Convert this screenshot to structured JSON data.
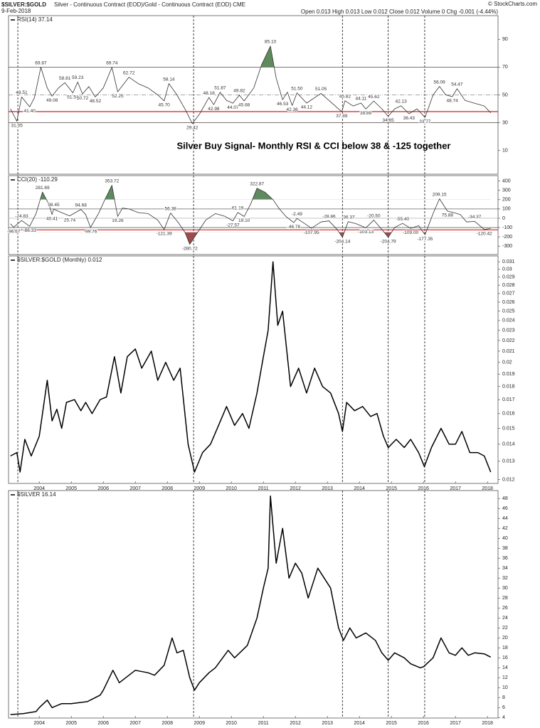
{
  "header": {
    "symbol": "$SILVER:$GOLD",
    "description": "Silver - Continuous Contract (EOD)/Gold - Continuous Contract (EOD) CME",
    "date": "9-Feb-2018",
    "quote": "Open 0.013 High 0.013 Low 0.012 Close 0.012 Volume 0 Chg -0.001 (-4.44%)",
    "copyright": "© StockCharts.com"
  },
  "chart_data": [
    {
      "type": "line",
      "title": "RSI(14) 37.14",
      "color": "#333333",
      "annotation": "Silver Buy Signal- Monthly RSI & CCI below 38 & -125 together",
      "xlim": [
        2003.04,
        2018.33
      ],
      "ylim": [
        -7,
        107
      ],
      "yticks": [
        90,
        70,
        50,
        30,
        10
      ],
      "fill_above": 70,
      "fill_below": 30,
      "fill_above_color": "#5e8a5e",
      "fill_below_color": "#9e4b4b",
      "hlines": [
        {
          "value": 70,
          "color": "#444444"
        },
        {
          "value": 50,
          "color": "#888888",
          "dash": true
        },
        {
          "value": 38,
          "color": "#cc2222"
        },
        {
          "value": 30,
          "color": "#444444"
        }
      ],
      "vlines": [
        2003.33,
        2008.82,
        2013.47,
        2014.9,
        2016.04
      ],
      "x": [
        2003.1,
        2003.3,
        2003.45,
        2003.7,
        2003.85,
        2004.05,
        2004.25,
        2004.4,
        2004.6,
        2004.8,
        2005.05,
        2005.2,
        2005.35,
        2005.55,
        2005.75,
        2006.0,
        2006.27,
        2006.45,
        2006.8,
        2007.1,
        2007.4,
        2007.7,
        2007.9,
        2008.05,
        2008.3,
        2008.55,
        2008.78,
        2009.0,
        2009.3,
        2009.45,
        2009.65,
        2009.85,
        2010.05,
        2010.25,
        2010.4,
        2010.7,
        2010.95,
        2011.22,
        2011.4,
        2011.6,
        2011.75,
        2011.9,
        2012.05,
        2012.35,
        2012.8,
        2013.1,
        2013.45,
        2013.55,
        2013.8,
        2014.05,
        2014.2,
        2014.45,
        2014.7,
        2014.9,
        2015.1,
        2015.3,
        2015.55,
        2015.8,
        2016.05,
        2016.3,
        2016.5,
        2016.7,
        2016.9,
        2017.05,
        2017.3,
        2017.6,
        2017.9,
        2018.1
      ],
      "values": [
        40,
        31.05,
        48.51,
        41.4,
        48,
        69.87,
        55,
        49.08,
        55,
        58.81,
        51.5,
        59.23,
        50.72,
        56,
        48.52,
        55,
        69.74,
        52.25,
        62.72,
        58,
        55,
        50,
        45.7,
        58.14,
        50,
        40,
        29.42,
        36,
        48.18,
        42.98,
        51.87,
        46,
        44.07,
        49.82,
        45.68,
        55,
        72,
        85.1,
        62,
        46.53,
        52,
        42.36,
        51.5,
        44.12,
        51.05,
        45,
        37.89,
        45.82,
        42,
        44.11,
        39.89,
        45.62,
        40,
        34.65,
        40,
        42.13,
        36.43,
        40,
        33.77,
        50,
        56.09,
        50,
        48.74,
        54.47,
        46,
        44,
        42,
        37.14
      ],
      "annotations": [
        {
          "x": 2003.3,
          "value": 31.05
        },
        {
          "x": 2003.45,
          "value": 48.51
        },
        {
          "x": 2003.7,
          "value": 41.4,
          "label": "41.40"
        },
        {
          "x": 2004.05,
          "value": 69.87
        },
        {
          "x": 2004.4,
          "value": 49.08
        },
        {
          "x": 2004.8,
          "value": 58.81
        },
        {
          "x": 2005.05,
          "value": 51.5,
          "label": "51.50"
        },
        {
          "x": 2005.2,
          "value": 59.23
        },
        {
          "x": 2005.35,
          "value": 50.72
        },
        {
          "x": 2005.75,
          "value": 48.52
        },
        {
          "x": 2006.27,
          "value": 69.74
        },
        {
          "x": 2006.45,
          "value": 52.25
        },
        {
          "x": 2006.8,
          "value": 62.72
        },
        {
          "x": 2007.9,
          "value": 45.7,
          "label": "45.70"
        },
        {
          "x": 2008.05,
          "value": 58.14
        },
        {
          "x": 2008.78,
          "value": 29.42
        },
        {
          "x": 2009.3,
          "value": 48.18
        },
        {
          "x": 2009.45,
          "value": 42.98
        },
        {
          "x": 2009.65,
          "value": 51.87
        },
        {
          "x": 2010.05,
          "value": 44.07
        },
        {
          "x": 2010.25,
          "value": 49.82
        },
        {
          "x": 2010.4,
          "value": 45.68
        },
        {
          "x": 2011.22,
          "value": 85.1,
          "label": "85.10"
        },
        {
          "x": 2011.6,
          "value": 46.53
        },
        {
          "x": 2011.9,
          "value": 42.36
        },
        {
          "x": 2012.05,
          "value": 51.5,
          "label": "51.50"
        },
        {
          "x": 2012.35,
          "value": 44.12
        },
        {
          "x": 2012.8,
          "value": 51.05
        },
        {
          "x": 2013.45,
          "value": 37.89
        },
        {
          "x": 2013.55,
          "value": 45.82
        },
        {
          "x": 2014.05,
          "value": 44.11
        },
        {
          "x": 2014.2,
          "value": 39.89
        },
        {
          "x": 2014.45,
          "value": 45.62
        },
        {
          "x": 2014.9,
          "value": 34.65
        },
        {
          "x": 2015.3,
          "value": 42.13
        },
        {
          "x": 2015.55,
          "value": 36.43
        },
        {
          "x": 2016.05,
          "value": 33.77
        },
        {
          "x": 2016.5,
          "value": 56.09
        },
        {
          "x": 2016.9,
          "value": 48.74
        },
        {
          "x": 2017.05,
          "value": 54.47
        }
      ]
    },
    {
      "type": "line",
      "title": "CCI(20) -110.29",
      "color": "#333333",
      "xlim": [
        2003.04,
        2018.33
      ],
      "ylim": [
        -390,
        458
      ],
      "yticks": [
        400,
        300,
        200,
        100,
        0,
        -100,
        -200,
        -300
      ],
      "fill_above": 200,
      "fill_below": -150,
      "fill_above_color": "#5e8a5e",
      "fill_below_color": "#9e4b4b",
      "hlines": [
        {
          "value": 100,
          "color": "#666666"
        },
        {
          "value": 0,
          "color": "#bbbbbb"
        },
        {
          "value": -100,
          "color": "#666666"
        },
        {
          "value": -125,
          "color": "#cc2222"
        }
      ],
      "vlines": [
        2003.33,
        2008.82,
        2013.47,
        2014.9,
        2016.04
      ],
      "x": [
        2003.1,
        2003.2,
        2003.45,
        2003.7,
        2003.9,
        2004.1,
        2004.3,
        2004.4,
        2004.45,
        2004.7,
        2004.95,
        2005.3,
        2005.45,
        2005.6,
        2005.85,
        2006.05,
        2006.27,
        2006.45,
        2006.6,
        2006.8,
        2007.1,
        2007.4,
        2007.7,
        2007.9,
        2008.1,
        2008.35,
        2008.55,
        2008.7,
        2008.95,
        2009.2,
        2009.5,
        2009.8,
        2010.05,
        2010.2,
        2010.4,
        2010.6,
        2010.8,
        2011.05,
        2011.3,
        2011.5,
        2011.7,
        2011.95,
        2012.05,
        2012.3,
        2012.5,
        2012.8,
        2013.05,
        2013.3,
        2013.47,
        2013.65,
        2013.9,
        2014.2,
        2014.45,
        2014.7,
        2014.9,
        2015.1,
        2015.35,
        2015.6,
        2015.85,
        2016.05,
        2016.3,
        2016.5,
        2016.75,
        2016.95,
        2017.15,
        2017.35,
        2017.6,
        2017.9,
        2018.1
      ],
      "values": [
        -60,
        -96.67,
        -24.83,
        -86.33,
        50,
        281.69,
        150,
        40.41,
        98.45,
        60,
        25.74,
        94.68,
        40,
        -99.76,
        50,
        200,
        353.72,
        19.26,
        110,
        100,
        60,
        50,
        -20,
        -121.39,
        56.38,
        -50,
        -150,
        -280.72,
        -150,
        -20,
        50,
        20,
        -27.57,
        61.19,
        19.1,
        150,
        322.87,
        280,
        200,
        100,
        20,
        -46.78,
        -2.49,
        -60,
        -107.95,
        -40,
        -28.86,
        -120,
        -204.14,
        -36.37,
        -60,
        -103.13,
        -20.5,
        -120,
        -204.79,
        -100,
        -55.4,
        -109,
        -80,
        -177.35,
        50,
        209.15,
        75.88,
        60,
        40,
        -40,
        -34.37,
        -120.42,
        -110.29
      ],
      "annotations": [
        {
          "x": 2003.2,
          "value": -96.67
        },
        {
          "x": 2003.45,
          "value": -24.83
        },
        {
          "x": 2003.7,
          "value": -86.33
        },
        {
          "x": 2004.1,
          "value": 281.69
        },
        {
          "x": 2004.4,
          "value": 40.41
        },
        {
          "x": 2004.45,
          "value": 98.45
        },
        {
          "x": 2004.95,
          "value": 25.74
        },
        {
          "x": 2005.3,
          "value": 94.68
        },
        {
          "x": 2005.6,
          "value": -99.76
        },
        {
          "x": 2006.27,
          "value": 353.72
        },
        {
          "x": 2006.45,
          "value": 19.26
        },
        {
          "x": 2007.9,
          "value": -121.39
        },
        {
          "x": 2008.1,
          "value": 56.38
        },
        {
          "x": 2008.7,
          "value": -280.72
        },
        {
          "x": 2010.05,
          "value": -27.57
        },
        {
          "x": 2010.2,
          "value": 61.19
        },
        {
          "x": 2010.4,
          "value": 19.1,
          "label": "19.10"
        },
        {
          "x": 2010.8,
          "value": 322.87
        },
        {
          "x": 2011.95,
          "value": -46.78
        },
        {
          "x": 2012.05,
          "value": -2.49
        },
        {
          "x": 2012.5,
          "value": -107.95
        },
        {
          "x": 2013.05,
          "value": -28.86
        },
        {
          "x": 2013.47,
          "value": -204.14
        },
        {
          "x": 2013.65,
          "value": -36.37
        },
        {
          "x": 2014.2,
          "value": -103.13
        },
        {
          "x": 2014.45,
          "value": -20.5,
          "label": "-20.50"
        },
        {
          "x": 2014.9,
          "value": -204.79
        },
        {
          "x": 2015.35,
          "value": -55.4,
          "label": "-55.40"
        },
        {
          "x": 2015.6,
          "value": -109,
          "label": "-109.00"
        },
        {
          "x": 2016.05,
          "value": -177.35
        },
        {
          "x": 2016.5,
          "value": 209.15
        },
        {
          "x": 2016.75,
          "value": 75.88
        },
        {
          "x": 2017.6,
          "value": -34.37
        },
        {
          "x": 2017.9,
          "value": -120.42
        }
      ]
    },
    {
      "type": "line",
      "title": "$SILVER:$GOLD (Monthly) 0.012",
      "color": "#000000",
      "log_y": true,
      "xlim": [
        2003.04,
        2018.33
      ],
      "ylim": [
        0.0118,
        0.0318
      ],
      "yticks": [
        0.031,
        0.03,
        0.029,
        0.028,
        0.027,
        0.026,
        0.025,
        0.024,
        0.023,
        0.022,
        0.021,
        0.02,
        0.019,
        0.018,
        0.017,
        0.016,
        0.015,
        0.014,
        0.013,
        0.012
      ],
      "xticks": [
        2004,
        2005,
        2006,
        2007,
        2008,
        2009,
        2010,
        2011,
        2012,
        2013,
        2014,
        2015,
        2016,
        2017,
        2018
      ],
      "vlines": [
        2003.33,
        2008.82,
        2013.47,
        2014.9,
        2016.04
      ],
      "x": [
        2003.1,
        2003.3,
        2003.4,
        2003.55,
        2003.75,
        2004.0,
        2004.25,
        2004.4,
        2004.55,
        2004.7,
        2004.85,
        2005.1,
        2005.3,
        2005.45,
        2005.65,
        2005.9,
        2006.1,
        2006.35,
        2006.55,
        2006.75,
        2007.0,
        2007.2,
        2007.5,
        2007.7,
        2007.95,
        2008.2,
        2008.4,
        2008.65,
        2008.85,
        2009.1,
        2009.35,
        2009.6,
        2009.85,
        2010.1,
        2010.35,
        2010.55,
        2010.8,
        2011.0,
        2011.15,
        2011.3,
        2011.45,
        2011.6,
        2011.85,
        2012.1,
        2012.35,
        2012.6,
        2012.85,
        2013.1,
        2013.35,
        2013.47,
        2013.6,
        2013.85,
        2014.1,
        2014.35,
        2014.55,
        2014.75,
        2014.9,
        2015.15,
        2015.4,
        2015.6,
        2015.85,
        2016.03,
        2016.25,
        2016.55,
        2016.8,
        2017.0,
        2017.2,
        2017.45,
        2017.7,
        2017.9,
        2018.1
      ],
      "values": [
        0.0133,
        0.0135,
        0.0124,
        0.0143,
        0.0133,
        0.0145,
        0.0185,
        0.0155,
        0.0163,
        0.015,
        0.0168,
        0.017,
        0.0162,
        0.0168,
        0.016,
        0.017,
        0.0172,
        0.0205,
        0.0175,
        0.0205,
        0.0212,
        0.0195,
        0.021,
        0.0185,
        0.02,
        0.0185,
        0.0195,
        0.014,
        0.0124,
        0.0135,
        0.014,
        0.0152,
        0.0165,
        0.0152,
        0.016,
        0.015,
        0.0175,
        0.0205,
        0.023,
        0.031,
        0.0235,
        0.025,
        0.018,
        0.0195,
        0.0175,
        0.0195,
        0.018,
        0.0175,
        0.016,
        0.0148,
        0.0168,
        0.0162,
        0.0165,
        0.0158,
        0.016,
        0.0145,
        0.0138,
        0.0143,
        0.0138,
        0.0143,
        0.0135,
        0.0127,
        0.0138,
        0.015,
        0.014,
        0.014,
        0.0148,
        0.0135,
        0.0135,
        0.0133,
        0.0124
      ]
    },
    {
      "type": "line",
      "title": "$SILVER 16.14",
      "color": "#000000",
      "xlim": [
        2003.04,
        2018.33
      ],
      "ylim": [
        3.9,
        49.6
      ],
      "yticks": [
        48,
        46,
        44,
        42,
        40,
        38,
        36,
        34,
        32,
        30,
        28,
        26,
        24,
        22,
        20,
        18,
        16,
        14,
        12,
        10,
        8,
        6,
        4
      ],
      "xticks": [
        2004,
        2005,
        2006,
        2007,
        2008,
        2009,
        2010,
        2011,
        2012,
        2013,
        2014,
        2015,
        2016,
        2017,
        2018
      ],
      "vlines": [
        2003.33,
        2008.82,
        2013.47,
        2014.9,
        2016.04
      ],
      "x": [
        2003.1,
        2003.5,
        2003.9,
        2004.0,
        2004.25,
        2004.4,
        2004.7,
        2005.0,
        2005.5,
        2005.9,
        2006.0,
        2006.3,
        2006.5,
        2006.8,
        2007.0,
        2007.4,
        2007.6,
        2007.9,
        2008.15,
        2008.3,
        2008.5,
        2008.7,
        2008.85,
        2009.0,
        2009.3,
        2009.5,
        2009.9,
        2010.1,
        2010.5,
        2010.8,
        2011.0,
        2011.15,
        2011.22,
        2011.4,
        2011.6,
        2011.8,
        2012.0,
        2012.2,
        2012.4,
        2012.7,
        2012.9,
        2013.1,
        2013.35,
        2013.5,
        2013.7,
        2013.9,
        2014.2,
        2014.5,
        2014.7,
        2014.9,
        2015.1,
        2015.4,
        2015.6,
        2015.9,
        2016.0,
        2016.3,
        2016.55,
        2016.8,
        2017.0,
        2017.2,
        2017.4,
        2017.6,
        2017.9,
        2018.1
      ],
      "values": [
        4.6,
        4.8,
        5.2,
        6,
        7.5,
        6,
        6.8,
        6.8,
        7.2,
        8.5,
        9.5,
        13.5,
        11,
        12.5,
        13.5,
        13,
        12.5,
        14.5,
        20,
        17,
        17.5,
        12,
        9.5,
        11,
        13,
        14,
        17.5,
        16,
        18.5,
        24,
        30,
        34,
        48.5,
        35,
        42,
        32,
        35,
        33,
        28,
        34,
        32,
        30,
        22,
        19.5,
        22,
        20,
        21,
        19.5,
        17,
        15.5,
        17,
        16,
        14.8,
        14,
        14.2,
        16,
        20,
        17,
        16.5,
        18,
        16.5,
        17,
        16.8,
        16.14
      ]
    }
  ]
}
